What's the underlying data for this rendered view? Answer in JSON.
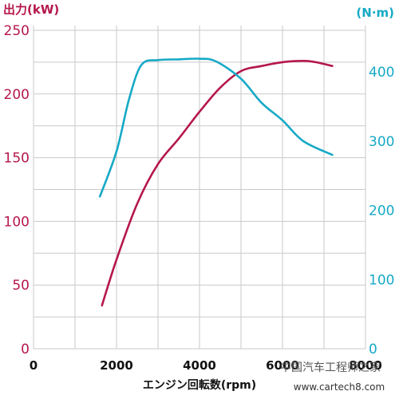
{
  "chart_data": {
    "type": "line",
    "xlabel": "エンジン回転数(rpm)",
    "x_ticks": [
      "0",
      "2000",
      "4000",
      "6000",
      "8000"
    ],
    "xlim": [
      0,
      8000
    ],
    "y_left": {
      "label": "出力(kW)",
      "ticks": [
        "0",
        "50",
        "100",
        "150",
        "200",
        "250"
      ],
      "ylim": [
        0,
        250
      ]
    },
    "y_right": {
      "label": "(N·m)",
      "ticks": [
        "0",
        "100",
        "200",
        "300",
        "400"
      ],
      "ylim": [
        0,
        460
      ]
    },
    "grid": true,
    "series": [
      {
        "axis": "left",
        "color": "#b5174a",
        "x": [
          1650,
          2000,
          2500,
          3000,
          3500,
          4000,
          4500,
          5000,
          5500,
          6000,
          6500,
          6800,
          7200
        ],
        "y": [
          34,
          70,
          114,
          145,
          165,
          186,
          205,
          218,
          222,
          225,
          226,
          225,
          222
        ]
      },
      {
        "axis": "right",
        "color": "#16a9c6",
        "x": [
          1600,
          2000,
          2300,
          2600,
          3000,
          3500,
          4000,
          4400,
          5000,
          5500,
          6000,
          6500,
          7200
        ],
        "y": [
          220,
          285,
          360,
          410,
          417,
          418,
          419,
          415,
          390,
          355,
          330,
          300,
          280
        ]
      }
    ]
  },
  "watermark": {
    "text_cn": "中国汽车工程师之家",
    "url": "www.cartech8.com"
  }
}
